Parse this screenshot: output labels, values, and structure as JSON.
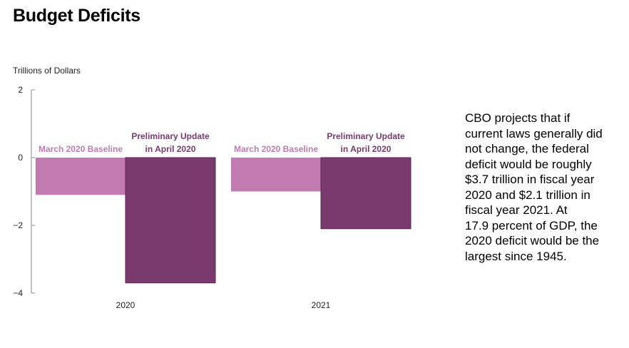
{
  "title": "Budget Deficits",
  "note_lines": [
    "CBO projects that if",
    "current laws generally did",
    "not change, the federal",
    "deficit would be roughly",
    "$3.7 trillion in fiscal year",
    "2020 and $2.1 trillion in",
    "fiscal year 2021. At",
    "17.9 percent of GDP, the",
    "2020 deficit would be the",
    "largest since 1945."
  ],
  "colors": {
    "baseline": "#c27bb0",
    "update": "#7b3a6e",
    "axis": "#888888"
  },
  "chart_data": {
    "type": "bar",
    "title": "Budget Deficits",
    "ylabel": "Trillions of Dollars",
    "xlabel": "",
    "ylim": [
      -4,
      2
    ],
    "yticks": [
      2,
      0,
      -2,
      -4
    ],
    "categories": [
      "2020",
      "2021"
    ],
    "series": [
      {
        "name": "March 2020 Baseline",
        "values": [
          -1.1,
          -1.0
        ]
      },
      {
        "name": "Preliminary Update in April 2020",
        "values": [
          -3.7,
          -2.1
        ]
      }
    ],
    "bar_labels": [
      [
        "March 2020 Baseline",
        "Preliminary Update",
        "in April 2020"
      ],
      [
        "March 2020 Baseline",
        "Preliminary Update",
        "in April 2020"
      ]
    ],
    "grid": false,
    "legend": "none"
  }
}
